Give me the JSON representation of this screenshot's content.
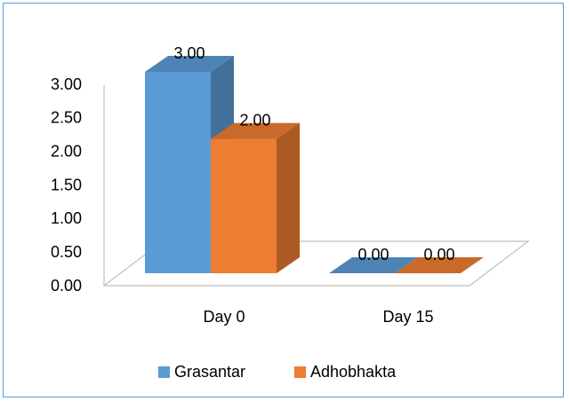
{
  "chart_data": {
    "type": "bar3d",
    "categories": [
      "Day 0",
      "Day 15"
    ],
    "series": [
      {
        "name": "Grasantar",
        "color": "#5b9bd5",
        "values": [
          3,
          0
        ],
        "value_labels": [
          "3.00",
          "0.00"
        ]
      },
      {
        "name": "Adhobhakta",
        "color": "#ed7d31",
        "values": [
          2,
          0
        ],
        "value_labels": [
          "2.00",
          "0.00"
        ]
      }
    ],
    "ylim": [
      0,
      3
    ],
    "yticks": [
      {
        "value": 0,
        "label": "0.00"
      },
      {
        "value": 0.5,
        "label": "0.50"
      },
      {
        "value": 1,
        "label": "1.00"
      },
      {
        "value": 1.5,
        "label": "1.50"
      },
      {
        "value": 2,
        "label": "2.00"
      },
      {
        "value": 2.5,
        "label": "2.50"
      },
      {
        "value": 3,
        "label": "3.00"
      }
    ],
    "legend": "bottom"
  }
}
